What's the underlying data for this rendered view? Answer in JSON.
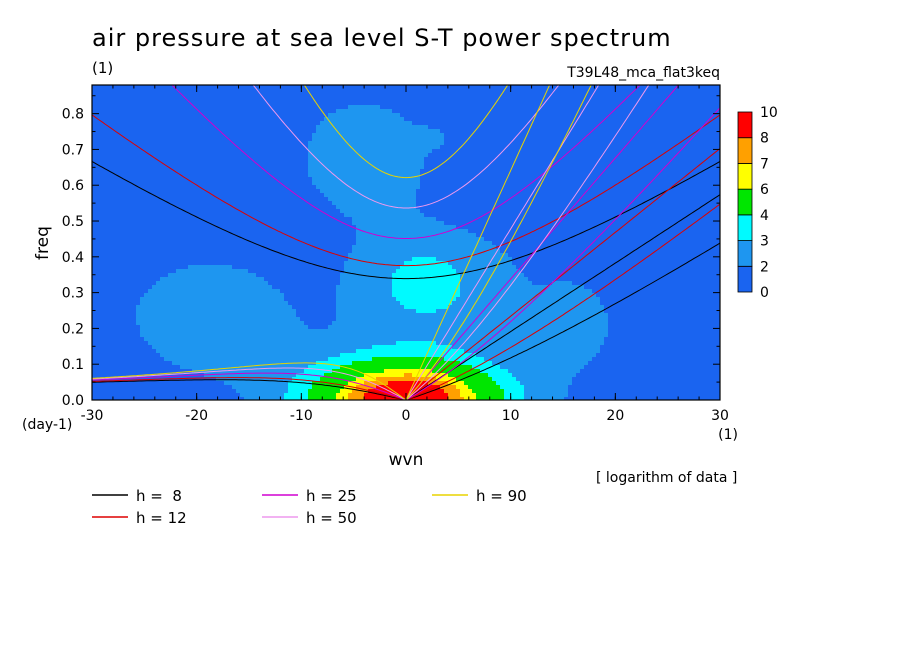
{
  "chart_data": {
    "type": "heatmap",
    "title": "air pressure at sea level S-T power spectrum",
    "subtitle_left": "(1)",
    "subtitle_right": "T39L48_mca_flat3keq",
    "xlabel": "wvn",
    "ylabel": "freq",
    "x_unit": "(1)",
    "y_unit": "(day-1)",
    "xlim": [
      -30,
      30
    ],
    "ylim": [
      0,
      0.88
    ],
    "x_ticks": [
      -30,
      -20,
      -10,
      0,
      10,
      20,
      30
    ],
    "y_ticks": [
      0.0,
      0.1,
      0.2,
      0.3,
      0.4,
      0.5,
      0.6,
      0.7,
      0.8
    ],
    "note": "[ logarithm of data ]",
    "colorbar": {
      "levels": [
        0,
        2,
        3,
        4,
        6,
        7,
        8,
        10
      ],
      "colors": [
        "#1a64f0",
        "#1e96f0",
        "#00faff",
        "#00e600",
        "#ffff00",
        "#ffa000",
        "#ff0000"
      ]
    },
    "field_description": "log power; maximum (>8) centred at wvn 0, freq 0; broad minimum (<2) at high freq on both flanks",
    "dispersion_curves": [
      {
        "name": "h =  8",
        "h": 8,
        "color": "#000000"
      },
      {
        "name": "h = 12",
        "h": 12,
        "color": "#dd0000"
      },
      {
        "name": "h = 25",
        "h": 25,
        "color": "#d000d0"
      },
      {
        "name": "h = 50",
        "h": 50,
        "color": "#ee99ee"
      },
      {
        "name": "h = 90",
        "h": 90,
        "color": "#e8d400"
      }
    ]
  }
}
